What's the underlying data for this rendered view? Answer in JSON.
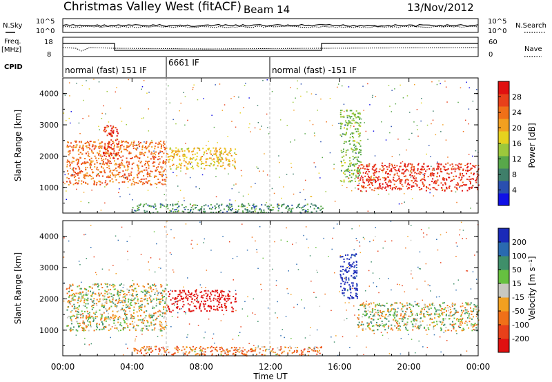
{
  "header": {
    "title": "Christmas Valley West (fitACF)",
    "beam": "Beam 14",
    "date": "13/Nov/2012"
  },
  "noise_panel": {
    "left_label": "N.Sky",
    "right_label": "N.Search",
    "left_ticks": [
      "10^5",
      "10^0"
    ],
    "right_ticks": [
      "10^5",
      "10^0"
    ]
  },
  "freq_panel": {
    "left_label_1": "Freq.",
    "left_label_2": "[MHz]",
    "right_label": "Nave",
    "left_ticks": [
      "18",
      "8"
    ],
    "right_ticks": [
      "60",
      "0"
    ]
  },
  "cpid": {
    "label": "CPID",
    "segments": [
      {
        "text": "normal (fast) 151 IF",
        "start_h": 0,
        "end_h": 6
      },
      {
        "text": "6661 IF",
        "start_h": 6,
        "end_h": 12
      },
      {
        "text": "normal (fast) -151 IF",
        "start_h": 12,
        "end_h": 24
      }
    ]
  },
  "power_panel": {
    "ylabel": "Slant Range [km]",
    "yticks": [
      "1000",
      "2000",
      "3000",
      "4000"
    ],
    "colorbar_label": "Power [dB]",
    "colorbar_ticks": [
      "4",
      "8",
      "12",
      "16",
      "20",
      "24",
      "28"
    ],
    "colorbar_colors": [
      "#1010e6",
      "#2a4fb0",
      "#3f7f6a",
      "#58a84a",
      "#9cc83c",
      "#e6d21e",
      "#f2a020",
      "#f07018",
      "#e8401a",
      "#e01010"
    ]
  },
  "velocity_panel": {
    "ylabel": "Slant Range [km]",
    "yticks": [
      "1000",
      "2000",
      "3000",
      "4000"
    ],
    "colorbar_label": "Velocity [m s⁻¹]",
    "colorbar_ticks": [
      "200",
      "100",
      "50",
      "15",
      "-15",
      "-50",
      "-100",
      "-200"
    ],
    "colorbar_colors": [
      "#1a2ab8",
      "#2a6ab0",
      "#3f8f6a",
      "#66c040",
      "#c8c8c0",
      "#f2a020",
      "#f07018",
      "#e8401a",
      "#e01010"
    ]
  },
  "x_axis": {
    "label": "Time UT",
    "ticks": [
      "00:00",
      "04:00",
      "08:00",
      "12:00",
      "16:00",
      "20:00",
      "00:00"
    ]
  },
  "chart_data": {
    "type": "heatmap",
    "x_range_hours": [
      0,
      24
    ],
    "y_range_km": [
      180,
      4500
    ],
    "power_regions": [
      {
        "t0": 0.2,
        "t1": 6.0,
        "r0": 1100,
        "r1": 2500,
        "level_db": 24
      },
      {
        "t0": 2.3,
        "t1": 3.2,
        "r0": 1900,
        "r1": 3000,
        "level_db": 28
      },
      {
        "t0": 6.0,
        "t1": 10.0,
        "r0": 1600,
        "r1": 2300,
        "level_db": 18
      },
      {
        "t0": 16.0,
        "t1": 17.2,
        "r0": 1200,
        "r1": 3500,
        "level_db": 12
      },
      {
        "t0": 17.0,
        "t1": 24.0,
        "r0": 900,
        "r1": 1800,
        "level_db": 28
      },
      {
        "t0": 4.0,
        "t1": 15.0,
        "r0": 200,
        "r1": 500,
        "level_db": 8
      }
    ],
    "velocity_regions": [
      {
        "t0": 0.2,
        "t1": 6.0,
        "r0": 1000,
        "r1": 2500,
        "velocity": 0
      },
      {
        "t0": 6.0,
        "t1": 10.0,
        "r0": 1600,
        "r1": 2300,
        "velocity": -200
      },
      {
        "t0": 16.0,
        "t1": 17.0,
        "r0": 2000,
        "r1": 3500,
        "velocity": 200
      },
      {
        "t0": 17.0,
        "t1": 24.0,
        "r0": 1000,
        "r1": 1900,
        "velocity": 0
      },
      {
        "t0": 4.0,
        "t1": 15.0,
        "r0": 200,
        "r1": 500,
        "velocity": -50
      }
    ]
  }
}
